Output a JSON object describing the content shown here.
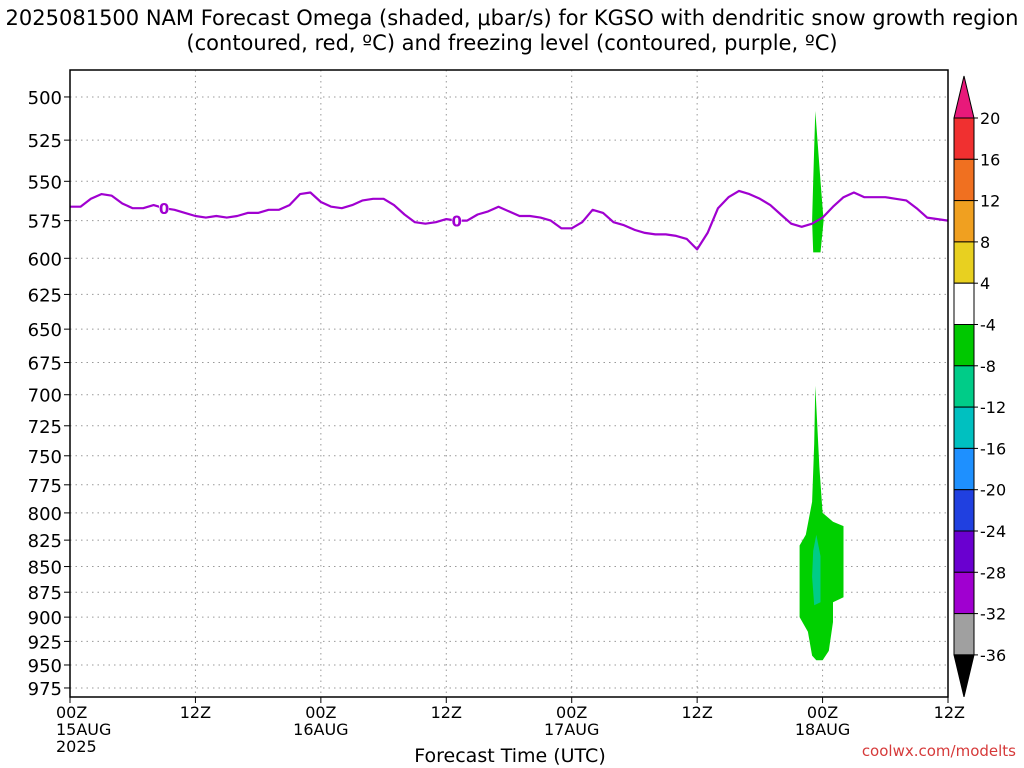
{
  "title": "2025081500 NAM Forecast Omega (shaded, μbar/s) for KGSO with dendritic snow growth region (contoured, red, ºC) and freezing level (contoured, purple, ºC)",
  "watermark": "coolwx.com/modelts",
  "colors": {
    "freezing_level": "#a000d0",
    "terrain": "#a0522d",
    "omega_green_light": "#00d000",
    "omega_green_dark": "#00b800",
    "omega_teal": "#00cc88",
    "grid": "#999999"
  },
  "chart_data": {
    "type": "heatmap",
    "xlabel": "Forecast Time (UTC)",
    "ylabel": "",
    "x_ticks": [
      {
        "hour": 0,
        "label": "00Z",
        "sub": "15AUG",
        "year": "2025"
      },
      {
        "hour": 12,
        "label": "12Z",
        "sub": "",
        "year": ""
      },
      {
        "hour": 24,
        "label": "00Z",
        "sub": "16AUG",
        "year": ""
      },
      {
        "hour": 36,
        "label": "12Z",
        "sub": "",
        "year": ""
      },
      {
        "hour": 48,
        "label": "00Z",
        "sub": "17AUG",
        "year": ""
      },
      {
        "hour": 60,
        "label": "12Z",
        "sub": "",
        "year": ""
      },
      {
        "hour": 72,
        "label": "00Z",
        "sub": "18AUG",
        "year": ""
      },
      {
        "hour": 84,
        "label": "12Z",
        "sub": "",
        "year": ""
      }
    ],
    "xlim": [
      0,
      84
    ],
    "y_ticks": [
      500,
      525,
      550,
      575,
      600,
      625,
      650,
      675,
      700,
      725,
      750,
      775,
      800,
      825,
      850,
      875,
      900,
      925,
      950,
      975
    ],
    "ylim": [
      985,
      485
    ],
    "grid": true,
    "colorbar": {
      "labels": [
        "20",
        "16",
        "12",
        "8",
        "4",
        "-4",
        "-8",
        "-12",
        "-16",
        "-20",
        "-24",
        "-28",
        "-32",
        "-36"
      ],
      "bands": [
        "#e8197a",
        "#f03030",
        "#f07020",
        "#f0a020",
        "#e8d020",
        "#ffffff",
        "#00c800",
        "#00cc88",
        "#00c0c0",
        "#1e90ff",
        "#2040e0",
        "#6a00d0",
        "#a000d0",
        "#a0a0a0",
        "#000000"
      ]
    },
    "freezing_level": {
      "label": "0",
      "label_hours": [
        9,
        37
      ],
      "hours": [
        0,
        1,
        2,
        3,
        4,
        5,
        6,
        7,
        8,
        9,
        10,
        11,
        12,
        13,
        14,
        15,
        16,
        17,
        18,
        19,
        20,
        21,
        22,
        23,
        24,
        25,
        26,
        27,
        28,
        29,
        30,
        31,
        32,
        33,
        34,
        35,
        36,
        37,
        38,
        39,
        40,
        41,
        42,
        43,
        44,
        45,
        46,
        47,
        48,
        49,
        50,
        51,
        52,
        53,
        54,
        55,
        56,
        57,
        58,
        59,
        60,
        61,
        62,
        63,
        64,
        65,
        66,
        67,
        68,
        69,
        70,
        71,
        72,
        73,
        74,
        75,
        76,
        77,
        78,
        79,
        80,
        81,
        82,
        83,
        84
      ],
      "pressure": [
        566,
        566,
        561,
        558,
        559,
        564,
        567,
        567,
        565,
        567,
        568,
        570,
        572,
        573,
        572,
        573,
        572,
        570,
        570,
        568,
        568,
        565,
        558,
        557,
        563,
        566,
        567,
        565,
        562,
        561,
        561,
        565,
        571,
        576,
        577,
        576,
        574,
        575,
        575,
        571,
        569,
        566,
        569,
        572,
        572,
        573,
        575,
        580,
        580,
        576,
        568,
        570,
        576,
        578,
        581,
        583,
        584,
        584,
        585,
        587,
        594,
        583,
        567,
        560,
        556,
        558,
        561,
        565,
        571,
        577,
        579,
        577,
        573,
        566,
        560,
        557,
        560,
        560,
        560,
        561,
        562,
        567,
        573,
        574,
        575
      ]
    },
    "omega_regions": [
      {
        "value": -4,
        "points": [
          [
            71.3,
            508
          ],
          [
            71.8,
            550
          ],
          [
            72.1,
            575
          ],
          [
            71.8,
            596
          ],
          [
            71.1,
            596
          ],
          [
            71.0,
            575
          ],
          [
            71.1,
            550
          ]
        ]
      },
      {
        "value": -4,
        "points": [
          [
            71.3,
            693
          ],
          [
            71.7,
            760
          ],
          [
            72.0,
            800
          ],
          [
            73.0,
            808
          ],
          [
            74.0,
            812
          ],
          [
            74.0,
            880
          ],
          [
            73.0,
            885
          ],
          [
            73.0,
            905
          ],
          [
            72.6,
            935
          ],
          [
            72.0,
            945
          ],
          [
            71.4,
            945
          ],
          [
            71.0,
            940
          ],
          [
            70.6,
            915
          ],
          [
            69.8,
            900
          ],
          [
            69.8,
            830
          ],
          [
            70.4,
            820
          ],
          [
            71.0,
            790
          ],
          [
            71.2,
            740
          ]
        ]
      },
      {
        "value": -8,
        "points": [
          [
            71.4,
            820
          ],
          [
            71.8,
            840
          ],
          [
            71.8,
            885
          ],
          [
            71.2,
            888
          ],
          [
            71.0,
            860
          ],
          [
            71.1,
            835
          ]
        ]
      }
    ],
    "terrain_top_pressure": 990
  }
}
